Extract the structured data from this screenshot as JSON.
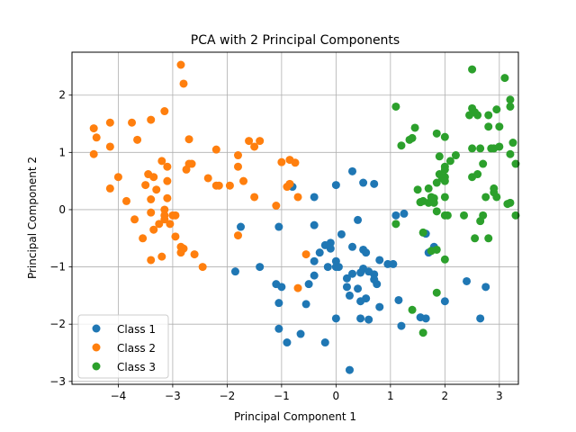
{
  "chart_data": {
    "type": "scatter",
    "title": "PCA with 2 Principal Components",
    "xlabel": "Principal Component 1",
    "ylabel": "Principal Component 2",
    "xlim": [
      -4.85,
      3.35
    ],
    "ylim": [
      -3.05,
      2.75
    ],
    "xticks": [
      -4,
      -3,
      -2,
      -1,
      0,
      1,
      2,
      3
    ],
    "yticks": [
      -3,
      -2,
      -1,
      0,
      1,
      2
    ],
    "grid": true,
    "legend_position": "lower-left",
    "series": [
      {
        "name": "Class 1",
        "color": "#1f77b4",
        "points": [
          [
            0.3,
            0.67
          ],
          [
            0.5,
            0.47
          ],
          [
            0.7,
            0.45
          ],
          [
            0.0,
            0.43
          ],
          [
            -0.8,
            0.4
          ],
          [
            -0.4,
            0.22
          ],
          [
            1.1,
            -0.1
          ],
          [
            1.25,
            -0.07
          ],
          [
            0.4,
            -0.18
          ],
          [
            -0.4,
            -0.27
          ],
          [
            -1.05,
            -0.3
          ],
          [
            -1.75,
            -0.3
          ],
          [
            0.1,
            -0.43
          ],
          [
            1.65,
            -0.42
          ],
          [
            -0.2,
            -0.62
          ],
          [
            -0.1,
            -0.58
          ],
          [
            -0.1,
            -0.68
          ],
          [
            0.3,
            -0.65
          ],
          [
            0.5,
            -0.7
          ],
          [
            0.55,
            -0.75
          ],
          [
            -0.3,
            -0.75
          ],
          [
            1.8,
            -0.65
          ],
          [
            1.7,
            -0.75
          ],
          [
            0.8,
            -0.88
          ],
          [
            0.95,
            -0.95
          ],
          [
            1.05,
            -0.95
          ],
          [
            0.0,
            -0.9
          ],
          [
            -0.4,
            -0.9
          ],
          [
            -0.15,
            -1.0
          ],
          [
            0.0,
            -1.0
          ],
          [
            0.05,
            -1.0
          ],
          [
            0.5,
            -1.03
          ],
          [
            0.6,
            -1.08
          ],
          [
            0.7,
            -1.13
          ],
          [
            0.45,
            -1.1
          ],
          [
            0.3,
            -1.12
          ],
          [
            0.2,
            -1.2
          ],
          [
            -0.4,
            -1.15
          ],
          [
            -1.4,
            -1.0
          ],
          [
            -1.85,
            -1.08
          ],
          [
            0.75,
            -1.3
          ],
          [
            0.7,
            -1.22
          ],
          [
            0.2,
            -1.35
          ],
          [
            0.4,
            -1.38
          ],
          [
            -0.5,
            -1.3
          ],
          [
            -1.0,
            -1.35
          ],
          [
            -1.1,
            -1.3
          ],
          [
            0.55,
            -1.55
          ],
          [
            0.25,
            -1.5
          ],
          [
            0.45,
            -1.6
          ],
          [
            0.8,
            -1.7
          ],
          [
            -0.55,
            -1.65
          ],
          [
            -1.05,
            -1.63
          ],
          [
            1.15,
            -1.58
          ],
          [
            2.4,
            -1.25
          ],
          [
            2.75,
            -1.35
          ],
          [
            0.0,
            -1.9
          ],
          [
            0.45,
            -1.9
          ],
          [
            0.6,
            -1.92
          ],
          [
            1.55,
            -1.88
          ],
          [
            1.65,
            -1.9
          ],
          [
            2.0,
            -1.6
          ],
          [
            2.65,
            -1.9
          ],
          [
            1.2,
            -2.03
          ],
          [
            -1.05,
            -2.08
          ],
          [
            -0.65,
            -2.17
          ],
          [
            -0.9,
            -2.32
          ],
          [
            -0.2,
            -2.32
          ],
          [
            0.25,
            -2.8
          ]
        ]
      },
      {
        "name": "Class 2",
        "color": "#ff7f0e",
        "points": [
          [
            -2.85,
            2.53
          ],
          [
            -2.8,
            2.2
          ],
          [
            -3.15,
            1.72
          ],
          [
            -3.75,
            1.52
          ],
          [
            -4.15,
            1.52
          ],
          [
            -3.4,
            1.57
          ],
          [
            -4.45,
            1.42
          ],
          [
            -4.4,
            1.26
          ],
          [
            -4.15,
            1.1
          ],
          [
            -3.65,
            1.22
          ],
          [
            -4.45,
            0.97
          ],
          [
            -2.7,
            1.23
          ],
          [
            -1.6,
            1.2
          ],
          [
            -1.4,
            1.2
          ],
          [
            -1.5,
            1.1
          ],
          [
            -2.2,
            1.05
          ],
          [
            -1.8,
            0.95
          ],
          [
            -1.0,
            0.83
          ],
          [
            -0.85,
            0.87
          ],
          [
            -0.75,
            0.82
          ],
          [
            -3.2,
            0.85
          ],
          [
            -3.1,
            0.75
          ],
          [
            -2.7,
            0.8
          ],
          [
            -2.65,
            0.8
          ],
          [
            -2.75,
            0.7
          ],
          [
            -1.8,
            0.75
          ],
          [
            -3.45,
            0.62
          ],
          [
            -3.35,
            0.57
          ],
          [
            -4.0,
            0.57
          ],
          [
            -3.1,
            0.5
          ],
          [
            -2.35,
            0.55
          ],
          [
            -1.7,
            0.5
          ],
          [
            -2.2,
            0.42
          ],
          [
            -2.15,
            0.42
          ],
          [
            -1.95,
            0.42
          ],
          [
            -3.5,
            0.43
          ],
          [
            -3.3,
            0.35
          ],
          [
            -4.15,
            0.37
          ],
          [
            -0.9,
            0.4
          ],
          [
            -0.85,
            0.45
          ],
          [
            -1.5,
            0.22
          ],
          [
            -0.7,
            0.22
          ],
          [
            -3.4,
            0.18
          ],
          [
            -3.1,
            0.2
          ],
          [
            -3.85,
            0.15
          ],
          [
            -1.1,
            0.07
          ],
          [
            -3.15,
            0.0
          ],
          [
            -3.15,
            -0.1
          ],
          [
            -3.15,
            -0.17
          ],
          [
            -3.0,
            -0.1
          ],
          [
            -2.95,
            -0.1
          ],
          [
            -3.4,
            -0.05
          ],
          [
            -3.7,
            -0.17
          ],
          [
            -3.05,
            -0.25
          ],
          [
            -3.25,
            -0.25
          ],
          [
            -3.35,
            -0.35
          ],
          [
            -2.95,
            -0.47
          ],
          [
            -3.55,
            -0.5
          ],
          [
            -1.8,
            -0.45
          ],
          [
            -2.85,
            -0.65
          ],
          [
            -2.8,
            -0.68
          ],
          [
            -2.85,
            -0.75
          ],
          [
            -2.6,
            -0.78
          ],
          [
            -3.2,
            -0.82
          ],
          [
            -3.4,
            -0.88
          ],
          [
            -2.45,
            -1.0
          ],
          [
            -0.55,
            -0.78
          ],
          [
            -0.7,
            -1.37
          ]
        ]
      },
      {
        "name": "Class 3",
        "color": "#2ca02c",
        "points": [
          [
            2.5,
            2.45
          ],
          [
            3.1,
            2.3
          ],
          [
            3.2,
            1.92
          ],
          [
            2.5,
            1.77
          ],
          [
            2.55,
            1.7
          ],
          [
            2.95,
            1.75
          ],
          [
            3.2,
            1.8
          ],
          [
            2.45,
            1.65
          ],
          [
            2.6,
            1.65
          ],
          [
            2.8,
            1.65
          ],
          [
            1.1,
            1.8
          ],
          [
            1.45,
            1.43
          ],
          [
            2.8,
            1.45
          ],
          [
            3.0,
            1.45
          ],
          [
            1.4,
            1.25
          ],
          [
            1.35,
            1.22
          ],
          [
            1.85,
            1.33
          ],
          [
            2.0,
            1.27
          ],
          [
            1.2,
            1.12
          ],
          [
            3.25,
            1.17
          ],
          [
            2.5,
            1.07
          ],
          [
            2.65,
            1.07
          ],
          [
            2.85,
            1.07
          ],
          [
            2.9,
            1.07
          ],
          [
            3.0,
            1.1
          ],
          [
            1.9,
            0.93
          ],
          [
            2.2,
            0.95
          ],
          [
            3.2,
            0.97
          ],
          [
            3.3,
            0.8
          ],
          [
            2.7,
            0.8
          ],
          [
            2.1,
            0.85
          ],
          [
            2.0,
            0.75
          ],
          [
            2.0,
            0.7
          ],
          [
            2.6,
            0.62
          ],
          [
            2.5,
            0.57
          ],
          [
            1.9,
            0.62
          ],
          [
            2.0,
            0.57
          ],
          [
            1.95,
            0.55
          ],
          [
            2.0,
            0.5
          ],
          [
            1.85,
            0.47
          ],
          [
            1.7,
            0.37
          ],
          [
            1.5,
            0.35
          ],
          [
            2.9,
            0.37
          ],
          [
            2.9,
            0.3
          ],
          [
            2.75,
            0.22
          ],
          [
            2.95,
            0.22
          ],
          [
            1.75,
            0.22
          ],
          [
            1.8,
            0.2
          ],
          [
            1.6,
            0.15
          ],
          [
            1.55,
            0.13
          ],
          [
            1.7,
            0.12
          ],
          [
            1.8,
            0.12
          ],
          [
            2.0,
            0.22
          ],
          [
            1.55,
            0.13
          ],
          [
            3.2,
            0.12
          ],
          [
            3.15,
            0.1
          ],
          [
            1.85,
            -0.03
          ],
          [
            2.0,
            -0.1
          ],
          [
            2.05,
            -0.1
          ],
          [
            2.35,
            -0.1
          ],
          [
            2.7,
            -0.1
          ],
          [
            3.3,
            -0.1
          ],
          [
            2.65,
            -0.2
          ],
          [
            1.1,
            -0.25
          ],
          [
            1.6,
            -0.4
          ],
          [
            2.55,
            -0.5
          ],
          [
            2.8,
            -0.5
          ],
          [
            1.85,
            -0.7
          ],
          [
            1.75,
            -0.72
          ],
          [
            2.0,
            -0.87
          ],
          [
            1.85,
            -1.45
          ],
          [
            1.4,
            -1.75
          ],
          [
            1.6,
            -2.15
          ]
        ]
      }
    ]
  }
}
